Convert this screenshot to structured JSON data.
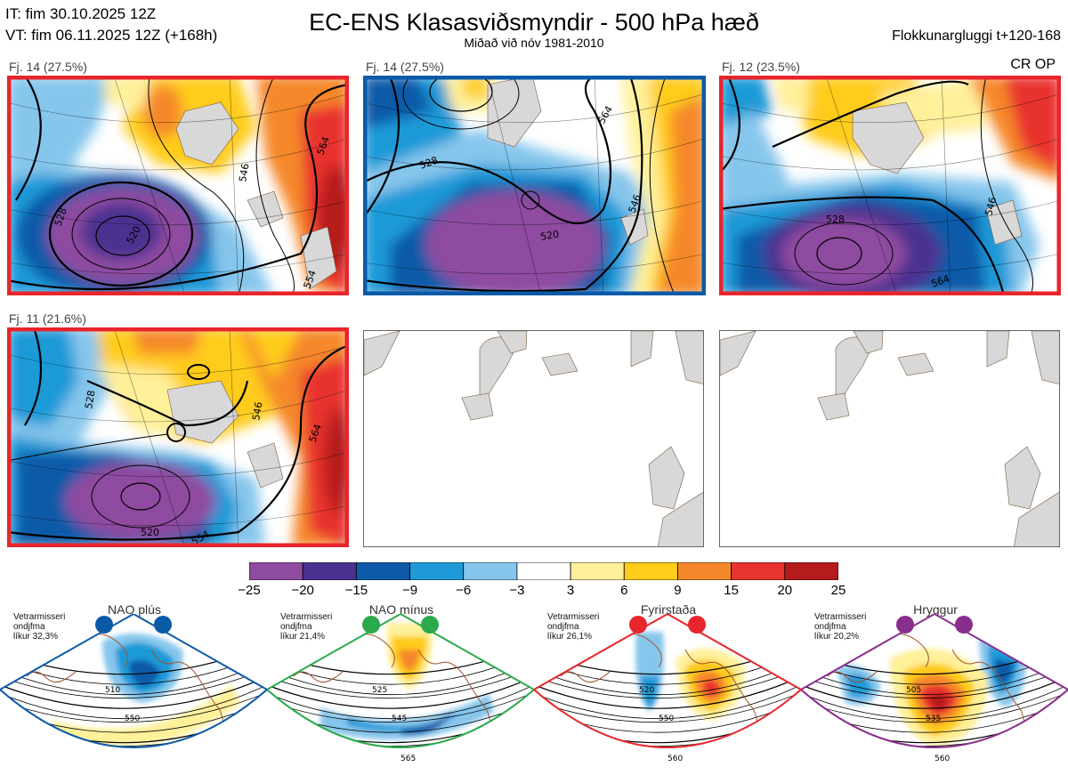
{
  "header": {
    "it_line": "IT: fim 30.10.2025 12Z",
    "vt_line": "VT: fim 06.11.2025 12Z  (+168h)",
    "title": "EC-ENS Klasasviðsmyndir - 500 hPa hæð",
    "subtitle": "Miðað við nóv 1981-2010",
    "window": "Flokkunargluggi t+120-168",
    "cr_op": "CR OP"
  },
  "panels": [
    {
      "label": "Fj. 14 (27.5%)",
      "border": "#e8252b",
      "contours": [
        "528",
        "520",
        "546",
        "554",
        "564"
      ]
    },
    {
      "label": "Fj. 14 (27.5%)",
      "border": "#0b5aa8",
      "contours": [
        "528",
        "520",
        "546",
        "564"
      ]
    },
    {
      "label": "Fj. 12 (23.5%)",
      "border": "#e8252b",
      "contours": [
        "528",
        "546",
        "564"
      ]
    },
    {
      "label": "Fj. 11 (21.6%)",
      "border": "#e8252b",
      "contours": [
        "528",
        "520",
        "546",
        "554",
        "564"
      ]
    }
  ],
  "colorbar": {
    "colors": [
      "#8e4ba0",
      "#4b3290",
      "#0f5aa8",
      "#1f9ad8",
      "#86c6ec",
      "#ffffff",
      "#fff09a",
      "#ffcc1a",
      "#f5882a",
      "#e8332f",
      "#b51b1c"
    ],
    "ticks": [
      "−25",
      "−20",
      "−15",
      "−9",
      "−6",
      "−3",
      "3",
      "6",
      "9",
      "15",
      "20",
      "25"
    ]
  },
  "regimes": [
    {
      "name": "NAO plús",
      "color": "#0b5aa8",
      "note": [
        "Vetrarmisseri",
        "ondjfma",
        "líkur 32,3%"
      ],
      "contours": [
        "510",
        "550"
      ]
    },
    {
      "name": "NAO mínus",
      "color": "#2aaa4a",
      "note": [
        "Vetrarmisseri",
        "ondjfma",
        "líkur 21,4%"
      ],
      "contours": [
        "525",
        "545",
        "565"
      ]
    },
    {
      "name": "Fyrirstaða",
      "color": "#e8252b",
      "note": [
        "Vetrarmisseri",
        "ondjfma",
        "líkur 26,1%"
      ],
      "contours": [
        "520",
        "550",
        "560"
      ]
    },
    {
      "name": "Hryggur",
      "color": "#8a2e8e",
      "note": [
        "Vetrarmisseri",
        "ondjfma",
        "líkur 20,2%"
      ],
      "contours": [
        "505",
        "535",
        "560"
      ]
    }
  ]
}
